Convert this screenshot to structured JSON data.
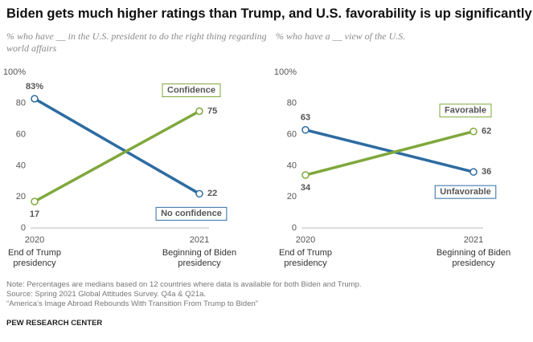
{
  "title": "Biden gets much higher ratings than Trump, and U.S. favorability is up significantly",
  "chart_data": [
    {
      "type": "line",
      "subtitle": "% who have __ in the U.S. president to do the right thing regarding world affairs",
      "categories": [
        "2020",
        "2021"
      ],
      "category_labels": [
        "End of Trump presidency",
        "Beginning of Biden presidency"
      ],
      "series": [
        {
          "name": "No confidence",
          "color": "#2d6ca2",
          "values": [
            83,
            22
          ],
          "value_labels": [
            "83%",
            "22"
          ]
        },
        {
          "name": "Confidence",
          "color": "#7fa83c",
          "values": [
            17,
            75
          ]
        }
      ],
      "ylim": [
        0,
        100
      ],
      "yticks": [
        0,
        20,
        40,
        60,
        80,
        {
          "value": 100,
          "label": "100%"
        }
      ]
    },
    {
      "type": "line",
      "subtitle": "% who have a __ view of the U.S.",
      "categories": [
        "2020",
        "2021"
      ],
      "category_labels": [
        "End of Trump presidency",
        "Beginning of Biden presidency"
      ],
      "series": [
        {
          "name": "Unfavorable",
          "color": "#2d6ca2",
          "values": [
            63,
            36
          ]
        },
        {
          "name": "Favorable",
          "color": "#7fa83c",
          "values": [
            34,
            62
          ]
        }
      ],
      "ylim": [
        0,
        100
      ],
      "yticks": [
        0,
        20,
        40,
        60,
        80,
        {
          "value": 100,
          "label": "100%"
        }
      ]
    }
  ],
  "notes": [
    "Note: Percentages are medians based on 12 countries where data is available for both Biden and Trump.",
    "Source: Spring 2021 Global Attitudes Survey. Q4a & Q21a.",
    "“America’s Image Abroad Rebounds With Transition From Trump to Biden”"
  ],
  "source_org": "PEW RESEARCH CENTER"
}
